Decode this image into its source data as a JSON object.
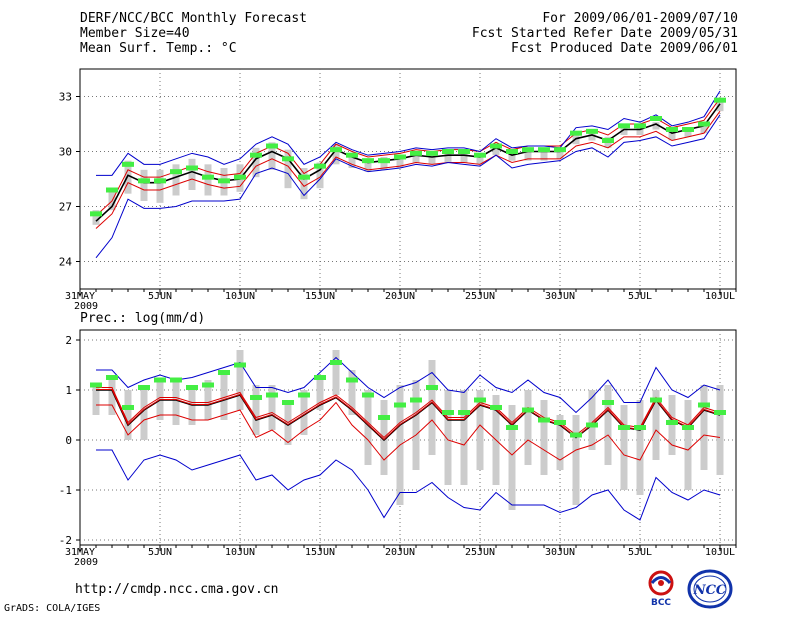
{
  "header": {
    "left": [
      "DERF/NCC/BCC Monthly Forecast",
      "Member Size=40",
      "Mean Surf. Temp.: °C"
    ],
    "right": [
      "For 2009/06/01-2009/07/10",
      "Fcst Started Refer Date 2009/05/31",
      "Fcst Produced Date 2009/06/01"
    ]
  },
  "footer": {
    "url": "http://cmdp.ncc.cma.gov.cn",
    "grads": "GrADS: COLA/IGES"
  },
  "logos": {
    "bcc": "BCC",
    "ncc": "NCC"
  },
  "colors": {
    "mean": "#000000",
    "spread": "#dd0000",
    "extreme": "#0000cc",
    "box": "#cccccc",
    "obs": "#44ee44"
  },
  "chart_data": [
    {
      "type": "line",
      "title": "",
      "ylabel": "°C",
      "x_tick_labels": [
        "31MAY\n2009",
        "5JUN",
        "10JUN",
        "15JUN",
        "20JUN",
        "25JUN",
        "30JUN",
        "5JUL",
        "10JUL"
      ],
      "x_tick_days": [
        0,
        5,
        10,
        15,
        20,
        25,
        30,
        35,
        40
      ],
      "ylim": [
        22.5,
        34.5
      ],
      "y_ticks": [
        24,
        27,
        30,
        33
      ],
      "x": [
        1,
        2,
        3,
        4,
        5,
        6,
        7,
        8,
        9,
        10,
        11,
        12,
        13,
        14,
        15,
        16,
        17,
        18,
        19,
        20,
        21,
        22,
        23,
        24,
        25,
        26,
        27,
        28,
        29,
        30,
        31,
        32,
        33,
        34,
        35,
        36,
        37,
        38,
        39,
        40
      ],
      "series": [
        {
          "name": "mean",
          "values": [
            26.2,
            27.0,
            28.7,
            28.3,
            28.3,
            28.6,
            28.9,
            28.6,
            28.4,
            28.5,
            29.6,
            30.0,
            29.6,
            28.5,
            29.0,
            30.1,
            29.7,
            29.4,
            29.5,
            29.6,
            29.8,
            29.7,
            29.8,
            29.8,
            29.7,
            30.2,
            29.8,
            30.0,
            30.0,
            30.0,
            30.7,
            30.9,
            30.6,
            31.2,
            31.2,
            31.5,
            31.0,
            31.2,
            31.4,
            32.6
          ]
        },
        {
          "name": "upper",
          "values": [
            26.5,
            27.3,
            29.0,
            28.6,
            28.6,
            28.9,
            29.2,
            28.9,
            28.7,
            28.8,
            29.9,
            30.3,
            29.9,
            28.8,
            29.3,
            30.4,
            30.0,
            29.7,
            29.8,
            29.9,
            30.1,
            30.0,
            30.1,
            30.1,
            30.0,
            30.5,
            30.1,
            30.3,
            30.3,
            30.3,
            31.0,
            31.2,
            30.9,
            31.5,
            31.5,
            31.8,
            31.3,
            31.5,
            31.7,
            32.9
          ]
        },
        {
          "name": "lower",
          "values": [
            25.8,
            26.6,
            28.3,
            27.9,
            27.9,
            28.2,
            28.5,
            28.2,
            28.0,
            28.1,
            29.2,
            29.6,
            29.2,
            28.1,
            28.6,
            29.7,
            29.3,
            29.0,
            29.1,
            29.2,
            29.4,
            29.3,
            29.4,
            29.4,
            29.3,
            29.8,
            29.4,
            29.6,
            29.6,
            29.6,
            30.3,
            30.5,
            30.2,
            30.8,
            30.8,
            31.1,
            30.6,
            30.8,
            31.0,
            32.2
          ]
        },
        {
          "name": "max",
          "values": [
            28.7,
            28.7,
            29.9,
            29.3,
            29.3,
            29.6,
            29.9,
            29.7,
            29.3,
            29.6,
            30.4,
            30.8,
            30.4,
            29.3,
            29.7,
            30.5,
            30.1,
            29.8,
            29.9,
            30.0,
            30.2,
            30.1,
            30.2,
            30.2,
            30.0,
            30.7,
            30.2,
            30.3,
            30.3,
            30.2,
            31.3,
            31.4,
            31.2,
            31.8,
            31.6,
            32.0,
            31.4,
            31.6,
            31.9,
            33.3
          ]
        },
        {
          "name": "min",
          "values": [
            24.2,
            25.3,
            27.4,
            26.9,
            26.9,
            27.0,
            27.3,
            27.3,
            27.3,
            27.4,
            28.8,
            29.1,
            28.8,
            27.6,
            28.5,
            29.6,
            29.2,
            28.9,
            29.0,
            29.1,
            29.3,
            29.2,
            29.4,
            29.3,
            29.2,
            29.8,
            29.1,
            29.3,
            29.4,
            29.5,
            30.0,
            30.2,
            29.7,
            30.5,
            30.6,
            30.8,
            30.3,
            30.5,
            30.7,
            32.0
          ]
        }
      ],
      "box_low": [
        26.0,
        26.8,
        27.7,
        27.3,
        27.2,
        27.6,
        27.9,
        27.6,
        27.6,
        27.8,
        28.6,
        29.0,
        28.0,
        27.4,
        28.0,
        29.3,
        29.1,
        28.9,
        29.0,
        29.1,
        29.4,
        29.3,
        29.4,
        29.4,
        29.3,
        29.8,
        29.5,
        29.5,
        29.5,
        29.6,
        30.4,
        30.6,
        30.2,
        30.9,
        30.9,
        31.2,
        30.6,
        30.8,
        31.0,
        32.2
      ],
      "box_high": [
        26.8,
        27.8,
        29.5,
        29.0,
        29.0,
        29.3,
        29.6,
        29.3,
        29.1,
        29.3,
        30.2,
        30.5,
        30.1,
        29.1,
        29.4,
        30.4,
        29.9,
        29.6,
        29.7,
        29.8,
        30.0,
        29.9,
        30.0,
        30.0,
        29.9,
        30.3,
        30.0,
        30.1,
        30.1,
        30.1,
        30.9,
        31.0,
        30.8,
        31.4,
        31.3,
        31.6,
        31.2,
        31.3,
        31.6,
        32.8
      ],
      "observed": [
        26.6,
        27.9,
        29.3,
        28.4,
        28.4,
        28.9,
        29.1,
        28.6,
        28.4,
        28.6,
        29.8,
        30.3,
        29.6,
        28.6,
        29.2,
        30.1,
        29.8,
        29.5,
        29.5,
        29.7,
        29.9,
        29.9,
        30.0,
        30.0,
        29.8,
        30.3,
        30.0,
        30.1,
        30.1,
        30.1,
        31.0,
        31.1,
        30.6,
        31.4,
        31.4,
        31.8,
        31.2,
        31.2,
        31.5,
        32.8
      ]
    },
    {
      "type": "line",
      "title": "Prec.: log(mm/d)",
      "ylabel": "log(mm/d)",
      "x_tick_labels": [
        "31MAY\n2009",
        "5JUN",
        "10JUN",
        "15JUN",
        "20JUN",
        "25JUN",
        "30JUN",
        "5JUL",
        "10JUL"
      ],
      "x_tick_days": [
        0,
        5,
        10,
        15,
        20,
        25,
        30,
        35,
        40
      ],
      "ylim": [
        -2.1,
        2.2
      ],
      "y_ticks": [
        -2,
        -1,
        0,
        1,
        2
      ],
      "x": [
        1,
        2,
        3,
        4,
        5,
        6,
        7,
        8,
        9,
        10,
        11,
        12,
        13,
        14,
        15,
        16,
        17,
        18,
        19,
        20,
        21,
        22,
        23,
        24,
        25,
        26,
        27,
        28,
        29,
        30,
        31,
        32,
        33,
        34,
        35,
        36,
        37,
        38,
        39,
        40
      ],
      "series": [
        {
          "name": "mean",
          "values": [
            1.0,
            1.0,
            0.3,
            0.6,
            0.8,
            0.8,
            0.7,
            0.7,
            0.8,
            0.9,
            0.4,
            0.5,
            0.3,
            0.5,
            0.7,
            0.85,
            0.6,
            0.3,
            0.0,
            0.3,
            0.5,
            0.75,
            0.4,
            0.4,
            0.7,
            0.6,
            0.3,
            0.6,
            0.4,
            0.3,
            0.05,
            0.3,
            0.6,
            0.25,
            0.2,
            0.8,
            0.4,
            0.25,
            0.6,
            0.5
          ]
        },
        {
          "name": "upper",
          "values": [
            1.05,
            1.05,
            0.35,
            0.65,
            0.85,
            0.85,
            0.75,
            0.75,
            0.85,
            0.95,
            0.45,
            0.55,
            0.35,
            0.55,
            0.75,
            0.9,
            0.65,
            0.35,
            0.05,
            0.35,
            0.55,
            0.8,
            0.45,
            0.45,
            0.75,
            0.65,
            0.35,
            0.65,
            0.45,
            0.35,
            0.1,
            0.35,
            0.65,
            0.3,
            0.25,
            0.85,
            0.45,
            0.3,
            0.65,
            0.55
          ]
        },
        {
          "name": "lower",
          "values": [
            0.7,
            0.7,
            0.1,
            0.4,
            0.5,
            0.5,
            0.4,
            0.4,
            0.5,
            0.6,
            0.05,
            0.2,
            -0.05,
            0.2,
            0.4,
            0.75,
            0.3,
            0.0,
            -0.4,
            -0.1,
            0.1,
            0.4,
            0.0,
            -0.1,
            0.3,
            0.0,
            -0.3,
            0.0,
            -0.2,
            -0.4,
            -0.2,
            -0.1,
            0.1,
            -0.3,
            -0.4,
            0.2,
            -0.1,
            -0.2,
            0.1,
            0.05
          ]
        },
        {
          "name": "max",
          "values": [
            1.4,
            1.4,
            1.05,
            1.2,
            1.3,
            1.2,
            1.25,
            1.35,
            1.45,
            1.55,
            1.05,
            1.05,
            0.95,
            1.05,
            1.35,
            1.65,
            1.35,
            1.05,
            0.85,
            1.05,
            1.15,
            1.35,
            1.0,
            0.95,
            1.3,
            1.05,
            0.95,
            1.2,
            0.95,
            0.85,
            0.55,
            0.85,
            1.2,
            0.75,
            0.75,
            1.45,
            1.0,
            0.85,
            1.1,
            1.0
          ]
        },
        {
          "name": "min",
          "values": [
            -0.2,
            -0.2,
            -0.8,
            -0.4,
            -0.3,
            -0.4,
            -0.6,
            -0.5,
            -0.4,
            -0.3,
            -0.8,
            -0.7,
            -1.0,
            -0.8,
            -0.7,
            -0.4,
            -0.6,
            -1.0,
            -1.55,
            -1.05,
            -1.05,
            -0.85,
            -1.15,
            -1.35,
            -1.4,
            -1.05,
            -1.3,
            -1.3,
            -1.3,
            -1.45,
            -1.35,
            -1.1,
            -1.0,
            -1.4,
            -1.6,
            -0.75,
            -1.05,
            -1.2,
            -1.0,
            -1.1
          ]
        },
        {
          "name": "observed_trace",
          "values": [
            1.0,
            1.0,
            0.3,
            0.6,
            0.8,
            0.8,
            0.7,
            0.7,
            0.8,
            0.9,
            0.4,
            0.5,
            0.3,
            0.5,
            0.7,
            0.85,
            0.6,
            0.3,
            0.0,
            0.3,
            0.5,
            0.75,
            0.4,
            0.4,
            0.7,
            0.6,
            0.3,
            0.6,
            0.4,
            0.3,
            0.05,
            0.3,
            0.6,
            0.25,
            0.2,
            0.8,
            0.4,
            0.25,
            0.6,
            0.5
          ]
        }
      ],
      "box_low": [
        0.5,
        0.5,
        0.0,
        0.0,
        0.4,
        0.3,
        0.3,
        0.4,
        0.4,
        0.6,
        0.1,
        0.2,
        -0.1,
        0.1,
        0.6,
        0.9,
        0.5,
        -0.5,
        -0.7,
        -1.3,
        -0.6,
        -0.3,
        -0.9,
        -0.9,
        -0.6,
        -0.9,
        -1.4,
        -0.5,
        -0.7,
        -0.6,
        -1.3,
        -0.2,
        -0.5,
        -1.0,
        -1.1,
        -0.4,
        -0.3,
        -1.0,
        -0.6,
        -0.7
      ],
      "box_high": [
        1.1,
        1.2,
        1.0,
        1.0,
        1.2,
        1.2,
        1.1,
        1.2,
        1.4,
        1.8,
        1.1,
        1.1,
        0.8,
        1.0,
        1.3,
        1.8,
        1.4,
        1.0,
        0.8,
        1.1,
        1.2,
        1.6,
        1.0,
        1.0,
        1.0,
        0.9,
        0.7,
        1.0,
        0.8,
        0.5,
        0.5,
        1.0,
        1.1,
        0.7,
        0.8,
        1.0,
        0.9,
        0.8,
        1.1,
        1.1
      ],
      "observed": [
        1.1,
        1.25,
        0.65,
        1.05,
        1.2,
        1.2,
        1.05,
        1.1,
        1.35,
        1.5,
        0.85,
        0.9,
        0.75,
        0.9,
        1.25,
        1.55,
        1.2,
        0.9,
        0.45,
        0.7,
        0.8,
        1.05,
        0.55,
        0.55,
        0.8,
        0.65,
        0.25,
        0.6,
        0.4,
        0.35,
        0.1,
        0.3,
        0.75,
        0.25,
        0.25,
        0.8,
        0.35,
        0.25,
        0.7,
        0.55
      ]
    }
  ]
}
